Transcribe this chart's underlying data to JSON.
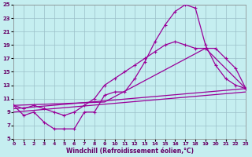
{
  "xlabel": "Windchill (Refroidissement éolien,°C)",
  "bg_color": "#c5eef0",
  "grid_color": "#9bbfc8",
  "line_color": "#990099",
  "xlim": [
    0,
    23
  ],
  "ylim": [
    5,
    25
  ],
  "xticks": [
    0,
    1,
    2,
    3,
    4,
    5,
    6,
    7,
    8,
    9,
    10,
    11,
    12,
    13,
    14,
    15,
    16,
    17,
    18,
    19,
    20,
    21,
    22,
    23
  ],
  "yticks": [
    5,
    7,
    9,
    11,
    13,
    15,
    17,
    19,
    21,
    23,
    25
  ],
  "line1_x": [
    0,
    1,
    2,
    3,
    4,
    5,
    6,
    7,
    8,
    9,
    10,
    11,
    12,
    13,
    14,
    15,
    16,
    17,
    18,
    19,
    20,
    21,
    22,
    23
  ],
  "line1_y": [
    10,
    8.5,
    9,
    7.5,
    6.5,
    6.5,
    6.5,
    9,
    9,
    11.5,
    12,
    12,
    14,
    16.5,
    19.5,
    22,
    24,
    25,
    24.5,
    19,
    16,
    14,
    13,
    12.5
  ],
  "line2_x": [
    0,
    1,
    2,
    3,
    4,
    5,
    6,
    7,
    8,
    9,
    10,
    11,
    12,
    13,
    14,
    15,
    16,
    17,
    18,
    19,
    20,
    21,
    22,
    23
  ],
  "line2_y": [
    10,
    9.5,
    10,
    9.5,
    9,
    8.5,
    9,
    10,
    11,
    13,
    14,
    15,
    16,
    17,
    18,
    19,
    19.5,
    19,
    18.5,
    18.5,
    18.5,
    17,
    15.5,
    12.5
  ],
  "line3_x": [
    0,
    23
  ],
  "line3_y": [
    9.5,
    12.5
  ],
  "line4_x": [
    0,
    23
  ],
  "line4_y": [
    9.0,
    12.0
  ],
  "line5_x": [
    0,
    9,
    19,
    23
  ],
  "line5_y": [
    10,
    10.5,
    18.5,
    12.5
  ]
}
